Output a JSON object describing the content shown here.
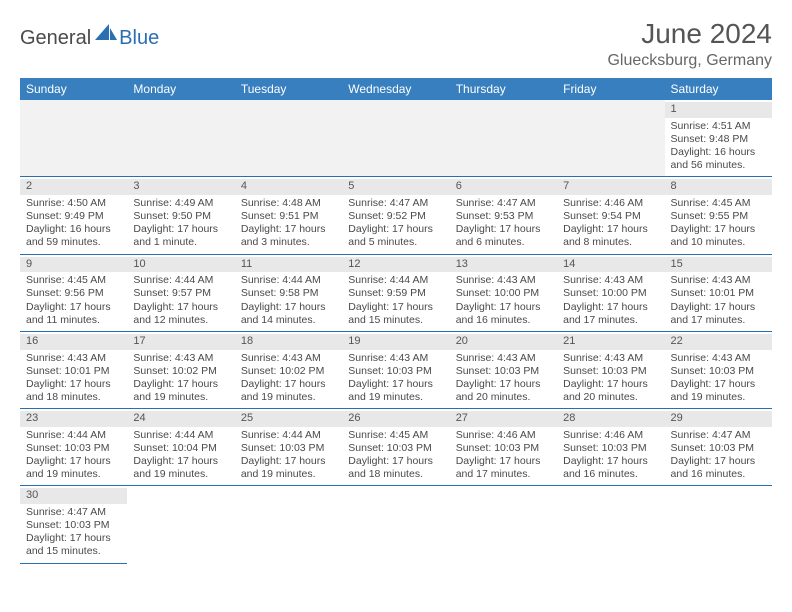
{
  "logo": {
    "text_dark": "General",
    "text_blue": "Blue"
  },
  "title": "June 2024",
  "subtitle": "Gluecksburg, Germany",
  "colors": {
    "header_bg": "#377fbf",
    "header_text": "#ffffff",
    "row_divider": "#2b6fb3",
    "daynum_bg": "#e8e8e8",
    "empty_bg": "#f2f2f2",
    "body_text": "#4a4a4a",
    "title_text": "#555555"
  },
  "days_of_week": [
    "Sunday",
    "Monday",
    "Tuesday",
    "Wednesday",
    "Thursday",
    "Friday",
    "Saturday"
  ],
  "weeks": [
    [
      null,
      null,
      null,
      null,
      null,
      null,
      {
        "n": "1",
        "sunrise": "Sunrise: 4:51 AM",
        "sunset": "Sunset: 9:48 PM",
        "daylight": "Daylight: 16 hours and 56 minutes."
      }
    ],
    [
      {
        "n": "2",
        "sunrise": "Sunrise: 4:50 AM",
        "sunset": "Sunset: 9:49 PM",
        "daylight": "Daylight: 16 hours and 59 minutes."
      },
      {
        "n": "3",
        "sunrise": "Sunrise: 4:49 AM",
        "sunset": "Sunset: 9:50 PM",
        "daylight": "Daylight: 17 hours and 1 minute."
      },
      {
        "n": "4",
        "sunrise": "Sunrise: 4:48 AM",
        "sunset": "Sunset: 9:51 PM",
        "daylight": "Daylight: 17 hours and 3 minutes."
      },
      {
        "n": "5",
        "sunrise": "Sunrise: 4:47 AM",
        "sunset": "Sunset: 9:52 PM",
        "daylight": "Daylight: 17 hours and 5 minutes."
      },
      {
        "n": "6",
        "sunrise": "Sunrise: 4:47 AM",
        "sunset": "Sunset: 9:53 PM",
        "daylight": "Daylight: 17 hours and 6 minutes."
      },
      {
        "n": "7",
        "sunrise": "Sunrise: 4:46 AM",
        "sunset": "Sunset: 9:54 PM",
        "daylight": "Daylight: 17 hours and 8 minutes."
      },
      {
        "n": "8",
        "sunrise": "Sunrise: 4:45 AM",
        "sunset": "Sunset: 9:55 PM",
        "daylight": "Daylight: 17 hours and 10 minutes."
      }
    ],
    [
      {
        "n": "9",
        "sunrise": "Sunrise: 4:45 AM",
        "sunset": "Sunset: 9:56 PM",
        "daylight": "Daylight: 17 hours and 11 minutes."
      },
      {
        "n": "10",
        "sunrise": "Sunrise: 4:44 AM",
        "sunset": "Sunset: 9:57 PM",
        "daylight": "Daylight: 17 hours and 12 minutes."
      },
      {
        "n": "11",
        "sunrise": "Sunrise: 4:44 AM",
        "sunset": "Sunset: 9:58 PM",
        "daylight": "Daylight: 17 hours and 14 minutes."
      },
      {
        "n": "12",
        "sunrise": "Sunrise: 4:44 AM",
        "sunset": "Sunset: 9:59 PM",
        "daylight": "Daylight: 17 hours and 15 minutes."
      },
      {
        "n": "13",
        "sunrise": "Sunrise: 4:43 AM",
        "sunset": "Sunset: 10:00 PM",
        "daylight": "Daylight: 17 hours and 16 minutes."
      },
      {
        "n": "14",
        "sunrise": "Sunrise: 4:43 AM",
        "sunset": "Sunset: 10:00 PM",
        "daylight": "Daylight: 17 hours and 17 minutes."
      },
      {
        "n": "15",
        "sunrise": "Sunrise: 4:43 AM",
        "sunset": "Sunset: 10:01 PM",
        "daylight": "Daylight: 17 hours and 17 minutes."
      }
    ],
    [
      {
        "n": "16",
        "sunrise": "Sunrise: 4:43 AM",
        "sunset": "Sunset: 10:01 PM",
        "daylight": "Daylight: 17 hours and 18 minutes."
      },
      {
        "n": "17",
        "sunrise": "Sunrise: 4:43 AM",
        "sunset": "Sunset: 10:02 PM",
        "daylight": "Daylight: 17 hours and 19 minutes."
      },
      {
        "n": "18",
        "sunrise": "Sunrise: 4:43 AM",
        "sunset": "Sunset: 10:02 PM",
        "daylight": "Daylight: 17 hours and 19 minutes."
      },
      {
        "n": "19",
        "sunrise": "Sunrise: 4:43 AM",
        "sunset": "Sunset: 10:03 PM",
        "daylight": "Daylight: 17 hours and 19 minutes."
      },
      {
        "n": "20",
        "sunrise": "Sunrise: 4:43 AM",
        "sunset": "Sunset: 10:03 PM",
        "daylight": "Daylight: 17 hours and 20 minutes."
      },
      {
        "n": "21",
        "sunrise": "Sunrise: 4:43 AM",
        "sunset": "Sunset: 10:03 PM",
        "daylight": "Daylight: 17 hours and 20 minutes."
      },
      {
        "n": "22",
        "sunrise": "Sunrise: 4:43 AM",
        "sunset": "Sunset: 10:03 PM",
        "daylight": "Daylight: 17 hours and 19 minutes."
      }
    ],
    [
      {
        "n": "23",
        "sunrise": "Sunrise: 4:44 AM",
        "sunset": "Sunset: 10:03 PM",
        "daylight": "Daylight: 17 hours and 19 minutes."
      },
      {
        "n": "24",
        "sunrise": "Sunrise: 4:44 AM",
        "sunset": "Sunset: 10:04 PM",
        "daylight": "Daylight: 17 hours and 19 minutes."
      },
      {
        "n": "25",
        "sunrise": "Sunrise: 4:44 AM",
        "sunset": "Sunset: 10:03 PM",
        "daylight": "Daylight: 17 hours and 19 minutes."
      },
      {
        "n": "26",
        "sunrise": "Sunrise: 4:45 AM",
        "sunset": "Sunset: 10:03 PM",
        "daylight": "Daylight: 17 hours and 18 minutes."
      },
      {
        "n": "27",
        "sunrise": "Sunrise: 4:46 AM",
        "sunset": "Sunset: 10:03 PM",
        "daylight": "Daylight: 17 hours and 17 minutes."
      },
      {
        "n": "28",
        "sunrise": "Sunrise: 4:46 AM",
        "sunset": "Sunset: 10:03 PM",
        "daylight": "Daylight: 17 hours and 16 minutes."
      },
      {
        "n": "29",
        "sunrise": "Sunrise: 4:47 AM",
        "sunset": "Sunset: 10:03 PM",
        "daylight": "Daylight: 17 hours and 16 minutes."
      }
    ],
    [
      {
        "n": "30",
        "sunrise": "Sunrise: 4:47 AM",
        "sunset": "Sunset: 10:03 PM",
        "daylight": "Daylight: 17 hours and 15 minutes."
      },
      null,
      null,
      null,
      null,
      null,
      null
    ]
  ]
}
